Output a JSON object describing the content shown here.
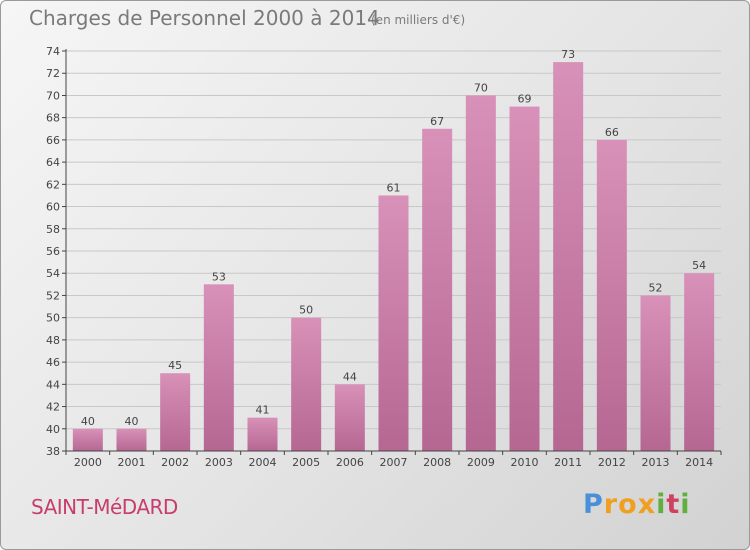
{
  "title": "Charges de Personnel 2000 à 2014",
  "subtitle": "(en milliers d'€)",
  "commune": "SAINT-MéDARD",
  "logo": {
    "letters": [
      "P",
      "r",
      "o",
      "x",
      "i",
      "t",
      "i"
    ],
    "colors": [
      "#4a90d9",
      "#f0a020",
      "#f0a020",
      "#f0a020",
      "#60b040",
      "#d04060",
      "#60b040"
    ]
  },
  "colors": {
    "bar": "#d891b8",
    "bar_dark": "#b56792",
    "axis": "#444444",
    "grid": "#c8c8c8",
    "commune": "#c83c6e"
  },
  "chart_data": {
    "type": "bar",
    "title": "Charges de Personnel 2000 à 2014",
    "subtitle": "(en milliers d'€)",
    "categories": [
      "2000",
      "2001",
      "2002",
      "2003",
      "2004",
      "2005",
      "2006",
      "2007",
      "2008",
      "2009",
      "2010",
      "2011",
      "2012",
      "2013",
      "2014"
    ],
    "values": [
      40,
      40,
      45,
      53,
      41,
      50,
      44,
      61,
      67,
      70,
      69,
      73,
      66,
      52,
      54
    ],
    "ylim": [
      38,
      74
    ],
    "yticks": [
      38,
      40,
      42,
      44,
      46,
      48,
      50,
      52,
      54,
      56,
      58,
      60,
      62,
      64,
      66,
      68,
      70,
      72,
      74
    ],
    "grid": true,
    "legend": "none"
  }
}
